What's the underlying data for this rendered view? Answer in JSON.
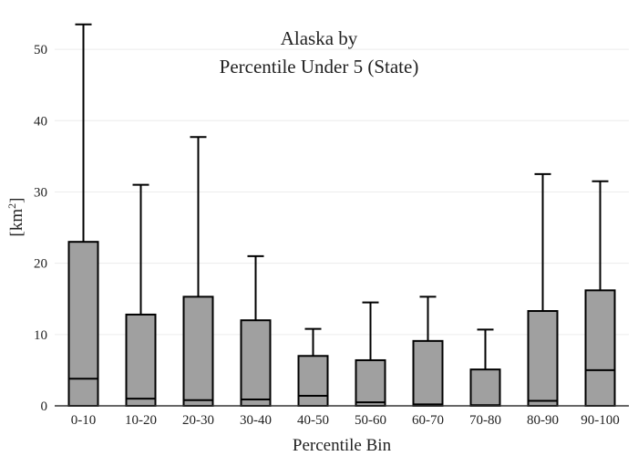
{
  "chart_data": {
    "type": "box",
    "title_lines": [
      "Alaska  by",
      "Percentile Under 5 (State)"
    ],
    "xlabel": "Percentile Bin",
    "ylabel_base": "[km",
    "ylabel_sup": "2",
    "ylabel_end": "]",
    "ylim": [
      0,
      55
    ],
    "yticks": [
      0,
      10,
      20,
      30,
      40,
      50
    ],
    "grid": true,
    "categories": [
      "0-10",
      "10-20",
      "20-30",
      "30-40",
      "40-50",
      "50-60",
      "60-70",
      "70-80",
      "80-90",
      "90-100"
    ],
    "boxes": [
      {
        "low": 0,
        "q1": 0,
        "median": 3.8,
        "q3": 23.0,
        "high": 53.5
      },
      {
        "low": 0,
        "q1": 0,
        "median": 1.0,
        "q3": 12.8,
        "high": 31.0
      },
      {
        "low": 0,
        "q1": 0,
        "median": 0.8,
        "q3": 15.3,
        "high": 37.7
      },
      {
        "low": 0,
        "q1": 0,
        "median": 0.9,
        "q3": 12.0,
        "high": 21.0
      },
      {
        "low": 0,
        "q1": 0,
        "median": 1.4,
        "q3": 7.0,
        "high": 10.8
      },
      {
        "low": 0,
        "q1": 0,
        "median": 0.5,
        "q3": 6.4,
        "high": 14.5
      },
      {
        "low": 0,
        "q1": 0,
        "median": 0.2,
        "q3": 9.1,
        "high": 15.3
      },
      {
        "low": 0,
        "q1": 0,
        "median": 0.1,
        "q3": 5.1,
        "high": 10.7
      },
      {
        "low": 0,
        "q1": 0,
        "median": 0.7,
        "q3": 13.3,
        "high": 32.5
      },
      {
        "low": 0,
        "q1": 0,
        "median": 5.0,
        "q3": 16.2,
        "high": 31.5
      }
    ],
    "colors": {
      "box_fill": "#a0a0a0",
      "stroke": "#000000",
      "grid": "#ececec",
      "axis": "#333333"
    }
  }
}
